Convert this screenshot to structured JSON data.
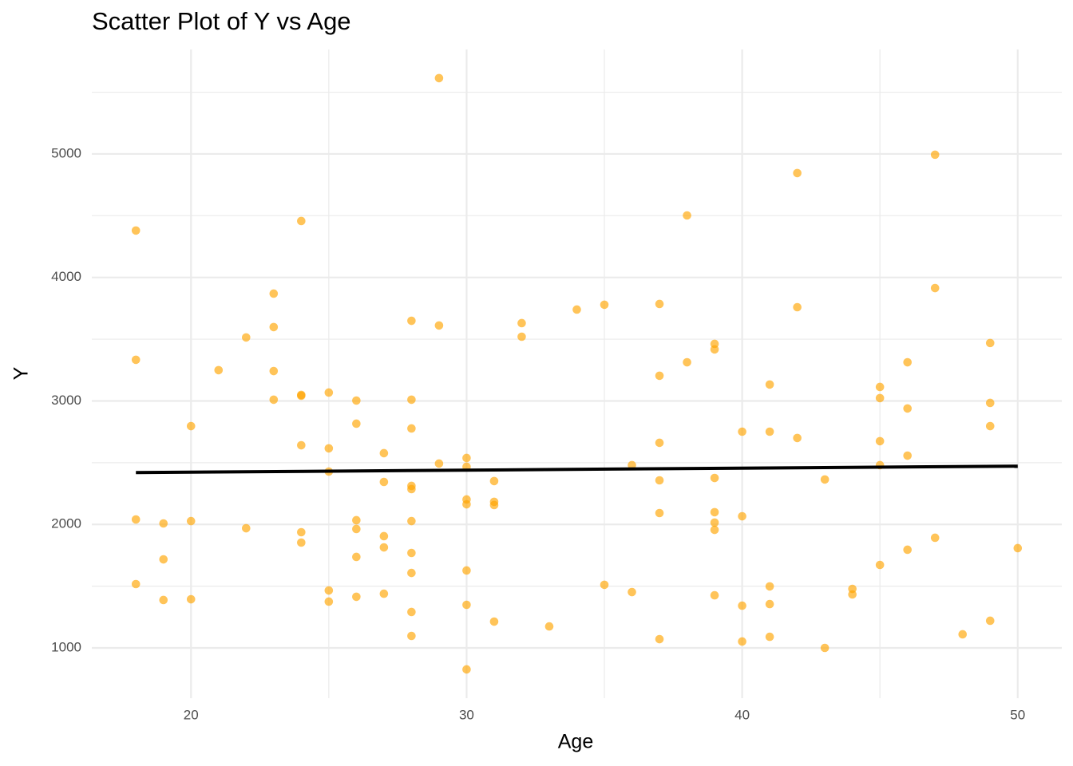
{
  "chart_data": {
    "type": "scatter",
    "title": "Scatter Plot of Y vs Age",
    "x_label": "Age",
    "y_label": "Y",
    "xlim": [
      16.4,
      51.6
    ],
    "ylim": [
      593,
      5846
    ],
    "xticks": [
      20,
      30,
      40,
      50
    ],
    "yticks": [
      1000,
      2000,
      3000,
      4000,
      5000
    ],
    "x_minor_grid": [
      25,
      35,
      45
    ],
    "y_minor_grid": [
      1500,
      2500,
      3500,
      4500,
      5500
    ],
    "grid": true,
    "series": [
      {
        "name": "Y",
        "color": "#FFA500",
        "x": [
          18,
          18,
          18,
          18,
          19,
          19,
          19,
          20,
          20,
          20,
          21,
          22,
          22,
          23,
          23,
          23,
          23,
          24,
          24,
          24,
          24,
          24,
          24,
          25,
          25,
          25,
          25,
          25,
          26,
          26,
          26,
          26,
          26,
          26,
          27,
          27,
          27,
          27,
          27,
          28,
          28,
          28,
          28,
          28,
          28,
          28,
          28,
          28,
          28,
          29,
          29,
          29,
          30,
          30,
          30,
          30,
          30,
          30,
          30,
          31,
          31,
          31,
          31,
          32,
          32,
          33,
          34,
          35,
          35,
          36,
          36,
          37,
          37,
          37,
          37,
          37,
          37,
          38,
          38,
          39,
          39,
          39,
          39,
          39,
          39,
          39,
          40,
          40,
          40,
          40,
          41,
          41,
          41,
          41,
          41,
          42,
          42,
          42,
          43,
          43,
          44,
          44,
          45,
          45,
          45,
          45,
          45,
          46,
          46,
          46,
          46,
          47,
          47,
          47,
          48,
          49,
          49,
          49,
          49,
          50
        ],
        "values": [
          4380,
          3333,
          2040,
          1517,
          2008,
          1717,
          1388,
          2796,
          2027,
          1394,
          3249,
          3514,
          1969,
          3869,
          3598,
          3242,
          3010,
          4457,
          3049,
          3042,
          2641,
          1937,
          1853,
          3068,
          2616,
          2428,
          1465,
          1375,
          3003,
          2816,
          2034,
          1963,
          1737,
          1414,
          2577,
          2344,
          1905,
          1814,
          1439,
          3649,
          3010,
          2777,
          2312,
          2286,
          2027,
          1769,
          1607,
          1291,
          1097,
          5614,
          3611,
          2493,
          2538,
          2467,
          2202,
          2163,
          1627,
          1349,
          826,
          2351,
          2183,
          2157,
          1213,
          3630,
          3520,
          1174,
          3740,
          3779,
          1511,
          2480,
          1452,
          3785,
          3204,
          2661,
          2357,
          2092,
          1071,
          4502,
          3313,
          3462,
          3417,
          2376,
          2099,
          2015,
          1956,
          1426,
          2751,
          2066,
          1342,
          1052,
          3133,
          2751,
          1498,
          1355,
          1090,
          4845,
          3759,
          2700,
          2364,
          1000,
          1478,
          1433,
          3113,
          3023,
          2674,
          2480,
          1672,
          3313,
          2939,
          2557,
          1795,
          4994,
          3914,
          1892,
          1110,
          3469,
          2984,
          2796,
          1220,
          1808
        ]
      }
    ],
    "trend_line": {
      "color": "#000000",
      "x": [
        18,
        50
      ],
      "values": [
        2420,
        2472
      ]
    }
  }
}
